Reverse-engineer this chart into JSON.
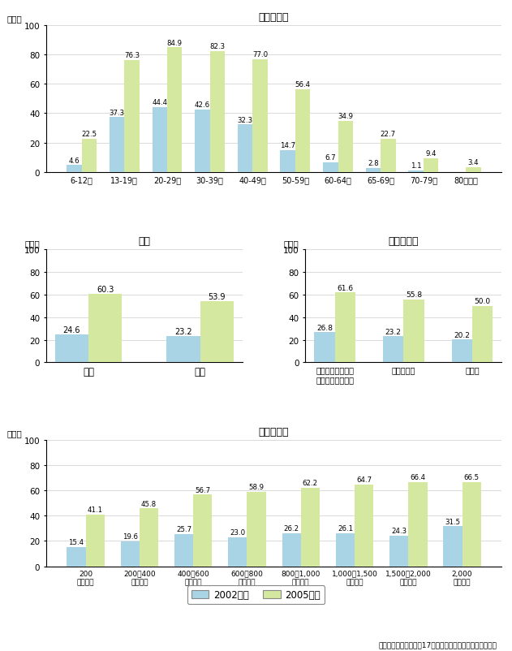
{
  "chart1": {
    "title": "年齢階級別",
    "categories": [
      "6-12歳",
      "13-19歳",
      "20-29歳",
      "30-39歳",
      "40-49歳",
      "50-59歳",
      "60-64歳",
      "65-69歳",
      "70-79歳",
      "80歳以上"
    ],
    "values_2002": [
      4.6,
      37.3,
      44.4,
      42.6,
      32.3,
      14.7,
      6.7,
      2.8,
      1.1,
      0.0
    ],
    "values_2005": [
      22.5,
      76.3,
      84.9,
      82.3,
      77.0,
      56.4,
      34.9,
      22.7,
      9.4,
      3.4
    ]
  },
  "chart2": {
    "title": "性別",
    "categories": [
      "男性",
      "女性"
    ],
    "values_2002": [
      24.6,
      23.2
    ],
    "values_2005": [
      60.3,
      53.9
    ]
  },
  "chart3": {
    "title": "都市階級別",
    "categories": [
      "特別区・政令指定\n都市・県庁所在地",
      "その他の市",
      "町・村"
    ],
    "values_2002": [
      26.8,
      23.2,
      20.2
    ],
    "values_2005": [
      61.6,
      55.8,
      50.0
    ]
  },
  "chart4": {
    "title": "世帯年収別",
    "categories": [
      "200\n万円未満",
      "200～400\n万円未満",
      "400～600\n万円未満",
      "600～800\n万円未満",
      "800～1,000\n万円未満",
      "1,000～1,500\n万円未満",
      "1,500～2,000\n万円未満",
      "2,000\n万円以上"
    ],
    "values_2002": [
      15.4,
      19.6,
      25.7,
      23.0,
      26.2,
      26.1,
      24.3,
      31.5
    ],
    "values_2005": [
      41.1,
      45.8,
      56.7,
      58.9,
      62.2,
      64.7,
      66.4,
      66.5
    ]
  },
  "color_2002": "#a8d4e6",
  "color_2005": "#d4e8a0",
  "legend_2002": "2002年末",
  "legend_2005": "2005年末",
  "ylabel": "（％）",
  "ylim": [
    0,
    100
  ],
  "yticks": [
    0,
    20,
    40,
    60,
    80,
    100
  ],
  "source": "（出典）総務省「平成17年通信利用動向調査（世帯編）」"
}
